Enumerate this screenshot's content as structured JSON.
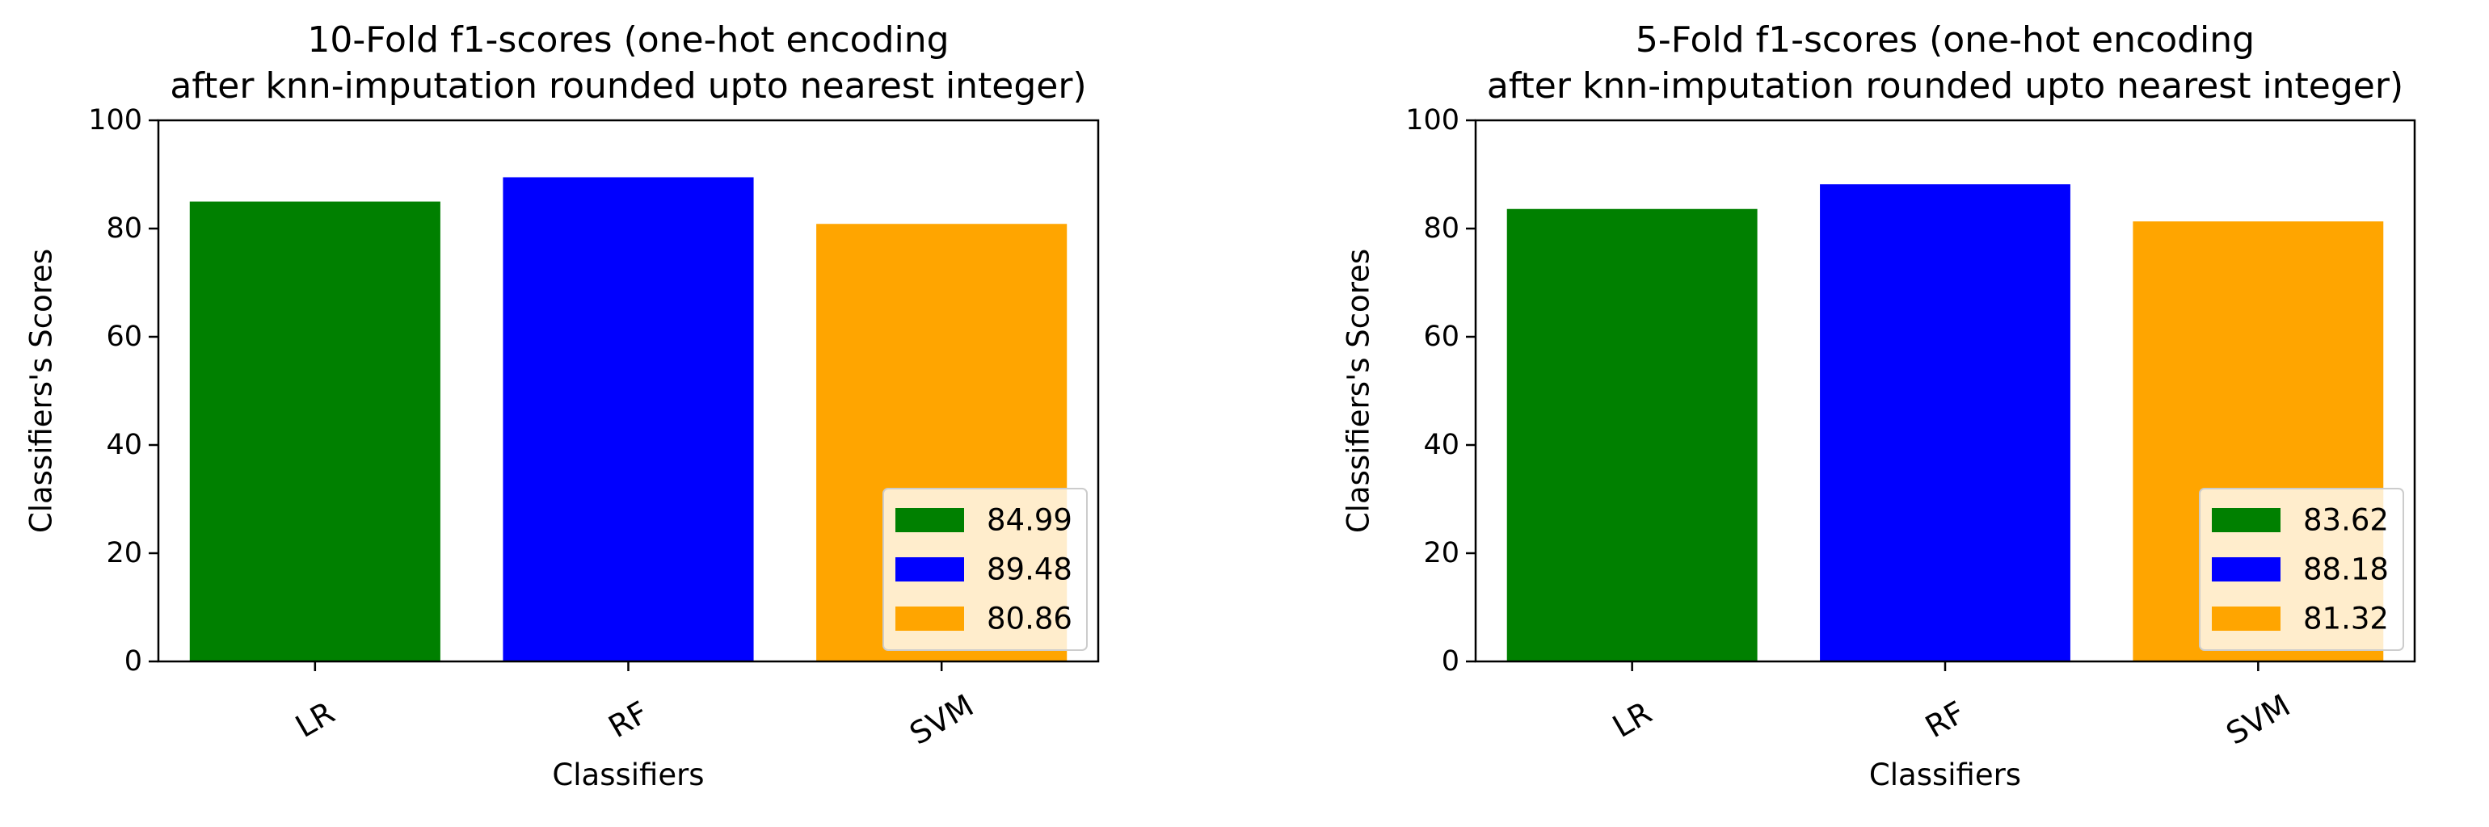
{
  "chart_data": [
    {
      "type": "bar",
      "title": "10-Fold f1-scores (one-hot encoding\nafter knn-imputation rounded upto nearest integer)",
      "xlabel": "Classifiers",
      "ylabel": "Classifiers's Scores",
      "categories": [
        "LR",
        "RF",
        "SVM"
      ],
      "values": [
        84.99,
        89.48,
        80.86
      ],
      "colors": [
        "#008000",
        "#0000ff",
        "#ffa500"
      ],
      "ylim": [
        0,
        100
      ],
      "yticks": [
        0,
        20,
        40,
        60,
        80,
        100
      ],
      "legend": {
        "placement": "lower-right",
        "entries": [
          "84.99",
          "89.48",
          "80.86"
        ]
      },
      "grid": false
    },
    {
      "type": "bar",
      "title": "5-Fold f1-scores (one-hot encoding\nafter knn-imputation rounded upto nearest integer)",
      "xlabel": "Classifiers",
      "ylabel": "Classifiers's Scores",
      "categories": [
        "LR",
        "RF",
        "SVM"
      ],
      "values": [
        83.62,
        88.18,
        81.32
      ],
      "colors": [
        "#008000",
        "#0000ff",
        "#ffa500"
      ],
      "ylim": [
        0,
        100
      ],
      "yticks": [
        0,
        20,
        40,
        60,
        80,
        100
      ],
      "legend": {
        "placement": "lower-right",
        "entries": [
          "83.62",
          "88.18",
          "81.32"
        ]
      },
      "grid": false
    }
  ]
}
